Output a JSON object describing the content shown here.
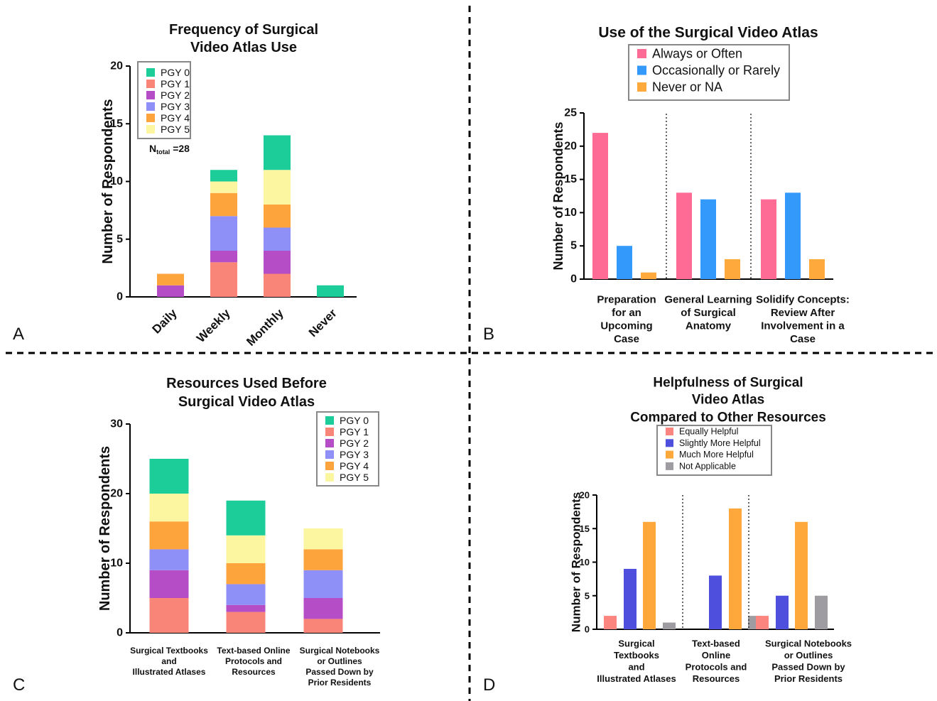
{
  "colors": {
    "pgy0": "#1ccc99",
    "pgy1": "#f98478",
    "pgy2": "#b44dc6",
    "pgy3": "#8f8ff8",
    "pgy4": "#fea43c",
    "pgy5": "#fdf6a1",
    "pink": "#fe6b94",
    "blue": "#3399fa",
    "orange": "#fea93c",
    "salmon": "#fc857f",
    "indigo": "#4f4fdd",
    "orange2": "#fea83c",
    "grey": "#9f9ca1"
  },
  "chart_data": [
    {
      "panel": "A",
      "type": "bar",
      "stacked": true,
      "title": [
        "Frequency of Surgical",
        "Video Atlas Use"
      ],
      "xlabel": "",
      "ylabel": "Number of Respondents",
      "ylim": [
        0,
        20
      ],
      "yticks": [
        0,
        5,
        10,
        15,
        20
      ],
      "categories": [
        "Daily",
        "Weekly",
        "Monthly",
        "Never"
      ],
      "legend_position": "top-left",
      "annotation": {
        "main": "N",
        "sub": "total",
        "rest": " =28"
      },
      "series": [
        {
          "name": "PGY 1",
          "color": "pgy1",
          "values": [
            0,
            3,
            2,
            0
          ]
        },
        {
          "name": "PGY 2",
          "color": "pgy2",
          "values": [
            1,
            1,
            2,
            0
          ]
        },
        {
          "name": "PGY 3",
          "color": "pgy3",
          "values": [
            0,
            3,
            2,
            0
          ]
        },
        {
          "name": "PGY 4",
          "color": "pgy4",
          "values": [
            1,
            2,
            2,
            0
          ]
        },
        {
          "name": "PGY 5",
          "color": "pgy5",
          "values": [
            0,
            1,
            3,
            0
          ]
        },
        {
          "name": "PGY 0",
          "color": "pgy0",
          "values": [
            0,
            1,
            3,
            1
          ]
        }
      ],
      "legend_order": [
        "PGY 0",
        "PGY 1",
        "PGY 2",
        "PGY 3",
        "PGY 4",
        "PGY 5"
      ]
    },
    {
      "panel": "B",
      "type": "bar",
      "stacked": false,
      "title": [
        "Use of the Surgical  Video Atlas"
      ],
      "xlabel": "",
      "ylabel": "Number of Respondents",
      "ylim": [
        0,
        25
      ],
      "yticks": [
        0,
        5,
        10,
        15,
        20,
        25
      ],
      "categories": [
        [
          "Preparation",
          "for an",
          "Upcoming",
          "Case"
        ],
        [
          "General Learning",
          "of Surgical",
          "Anatomy"
        ],
        [
          "Solidify Concepts:",
          "Review After",
          "Involvement in a",
          "Case"
        ]
      ],
      "legend_position": "top",
      "series": [
        {
          "name": "Always or Often",
          "color": "pink",
          "values": [
            22,
            13,
            12
          ]
        },
        {
          "name": "Occasionally or Rarely",
          "color": "blue",
          "values": [
            5,
            12,
            13
          ]
        },
        {
          "name": "Never or NA",
          "color": "orange",
          "values": [
            1,
            3,
            3
          ]
        }
      ]
    },
    {
      "panel": "C",
      "type": "bar",
      "stacked": true,
      "title": [
        "Resources Used Before",
        "Surgical Video Atlas"
      ],
      "xlabel": "",
      "ylabel": "Number of Respondents",
      "ylim": [
        0,
        30
      ],
      "yticks": [
        0,
        10,
        20,
        30
      ],
      "categories": [
        [
          "Surgical Textbooks",
          "and",
          "Illustrated Atlases"
        ],
        [
          "Text-based Online",
          "Protocols and",
          "Resources"
        ],
        [
          "Surgical  Notebooks",
          "or Outlines",
          "Passed Down by",
          "Prior Residents"
        ]
      ],
      "legend_position": "top-right",
      "series": [
        {
          "name": "PGY 1",
          "color": "pgy1",
          "values": [
            5,
            3,
            2
          ]
        },
        {
          "name": "PGY 2",
          "color": "pgy2",
          "values": [
            4,
            1,
            3
          ]
        },
        {
          "name": "PGY 3",
          "color": "pgy3",
          "values": [
            3,
            3,
            4
          ]
        },
        {
          "name": "PGY 4",
          "color": "pgy4",
          "values": [
            4,
            3,
            3
          ]
        },
        {
          "name": "PGY 5",
          "color": "pgy5",
          "values": [
            4,
            4,
            3
          ]
        },
        {
          "name": "PGY 0",
          "color": "pgy0",
          "values": [
            5,
            5,
            0
          ]
        }
      ],
      "legend_order": [
        "PGY 0",
        "PGY 1",
        "PGY 2",
        "PGY 3",
        "PGY 4",
        "PGY 5"
      ]
    },
    {
      "panel": "D",
      "type": "bar",
      "stacked": false,
      "title": [
        "Helpfulness of Surgical",
        "Video Atlas",
        "Compared to Other Resources"
      ],
      "xlabel": "",
      "ylabel": "Number of Respondents",
      "ylim": [
        0,
        20
      ],
      "yticks": [
        0,
        5,
        10,
        15,
        20
      ],
      "categories": [
        [
          "Surgical",
          "Textbooks",
          "and",
          "Illustrated Atlases"
        ],
        [
          "Text-based",
          "Online",
          "Protocols and",
          "Resources"
        ],
        [
          "Surgical  Notebooks",
          "or Outlines",
          "Passed Down by",
          "Prior Residents"
        ]
      ],
      "legend_position": "top",
      "series": [
        {
          "name": "Equally Helpful",
          "color": "salmon",
          "values": [
            2,
            0,
            2
          ]
        },
        {
          "name": "Slightly More Helpful",
          "color": "indigo",
          "values": [
            9,
            8,
            5
          ]
        },
        {
          "name": "Much More Helpful",
          "color": "orange2",
          "values": [
            16,
            18,
            16
          ]
        },
        {
          "name": "Not Applicable",
          "color": "grey",
          "values": [
            1,
            2,
            5
          ]
        }
      ]
    }
  ]
}
